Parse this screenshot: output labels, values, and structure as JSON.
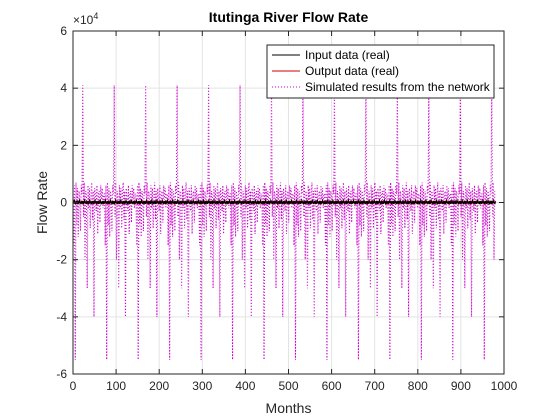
{
  "chart_data": {
    "type": "line",
    "title": "Itutinga River Flow Rate",
    "xlabel": "Months",
    "ylabel": "Flow Rate",
    "xlim": [
      0,
      1000
    ],
    "ylim": [
      -60000,
      60000
    ],
    "xticks": [
      0,
      100,
      200,
      300,
      400,
      500,
      600,
      700,
      800,
      900,
      1000
    ],
    "yticks": [
      -60000,
      -40000,
      -20000,
      0,
      20000,
      40000,
      60000
    ],
    "ytick_labels": [
      "-6",
      "-4",
      "-2",
      "0",
      "2",
      "4",
      "6"
    ],
    "y_multiplier_base": "×10",
    "y_multiplier_exponent": "4",
    "grid": true,
    "legend_position": "top-right",
    "series": [
      {
        "name": "Input data (real)",
        "color": "#000000",
        "style": "solid",
        "period": 12,
        "values": [
          -500,
          300,
          -200,
          800,
          400,
          -300,
          200,
          -600,
          500,
          100,
          -400,
          600
        ]
      },
      {
        "name": "Output data (real)",
        "color": "#cc0000",
        "style": "solid",
        "period": 12,
        "values": [
          -300,
          200,
          -100,
          500,
          300,
          -200,
          100,
          -400,
          300,
          100,
          -300,
          400
        ]
      },
      {
        "name": "Simulated results from the network",
        "color": "#cc00cc",
        "style": "dotted",
        "x_start": 0,
        "x_end": 980,
        "period": 73,
        "pattern": [
          3000,
          -15000,
          6000,
          -55000,
          7000,
          -8000,
          5000,
          -12000,
          4000,
          2000,
          -10000,
          6000,
          3000,
          41000,
          -5000,
          7000,
          -20000,
          4000,
          2000,
          -30000,
          6000,
          -2000,
          5000,
          -9000,
          3000,
          7000,
          -6000,
          4000,
          -40000,
          5000,
          2000,
          -3000,
          6000,
          -11000,
          3000,
          4000,
          -7000,
          6000,
          1000,
          5000,
          -2000,
          3000
        ]
      }
    ]
  }
}
